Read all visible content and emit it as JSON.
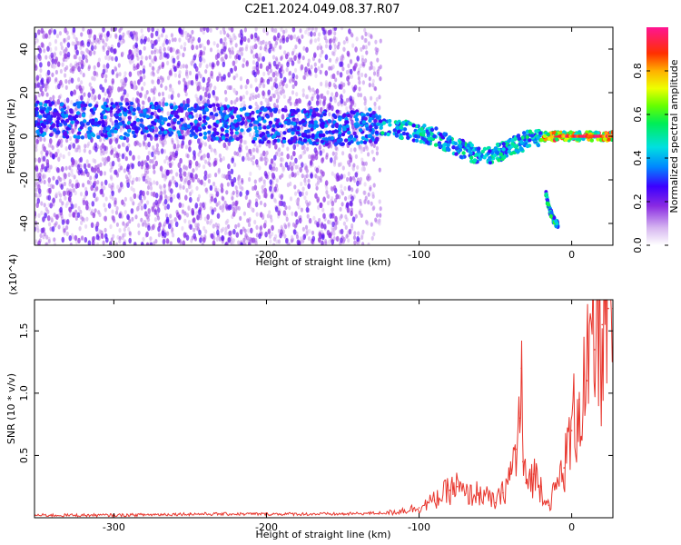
{
  "title": "C2E1.2024.049.08.37.R07",
  "chart_data": [
    {
      "type": "heatmap",
      "xlabel": "Height of straight line (km)",
      "ylabel": "Frequency (Hz)",
      "xlim": [
        -352,
        27
      ],
      "ylim": [
        -50,
        50
      ],
      "xticks": [
        -300,
        -200,
        -100,
        0
      ],
      "yticks": [
        -40,
        -20,
        0,
        20,
        40
      ],
      "colorbar": {
        "label": "Normalized spectral amplitude",
        "range": [
          0,
          1
        ],
        "ticks": [
          0.0,
          0.2,
          0.4,
          0.6,
          0.8
        ]
      },
      "ridge_x": [
        -352,
        -300,
        -250,
        -200,
        -150,
        -130,
        -110,
        -90,
        -75,
        -60,
        -50,
        -40,
        -30,
        -20,
        -10,
        0,
        10,
        27
      ],
      "ridge_y": [
        8,
        7,
        7,
        5,
        4,
        5,
        3,
        0,
        -5,
        -9,
        -8,
        -5,
        -2,
        0,
        0,
        0,
        0,
        0
      ],
      "secondary_x": [
        -17,
        -15,
        -12,
        -9
      ],
      "secondary_y": [
        -26,
        -33,
        -38,
        -41
      ]
    },
    {
      "type": "line",
      "xlabel": "Height of straight line (km)",
      "ylabel": "SNR (10 * v/v)",
      "y_scale_label": "(x10^4)",
      "xlim": [
        -352,
        27
      ],
      "ylim": [
        0,
        1.75
      ],
      "xticks": [
        -300,
        -200,
        -100,
        0
      ],
      "yticks": [
        0.5,
        1.0,
        1.5
      ],
      "series": [
        {
          "color": "#e8352c",
          "x": [
            -352,
            -300,
            -250,
            -200,
            -150,
            -120,
            -100,
            -90,
            -80,
            -75,
            -70,
            -60,
            -50,
            -45,
            -40,
            -36,
            -34,
            -33,
            -32,
            -30,
            -25,
            -20,
            -15,
            -10,
            -5,
            0,
            5,
            10,
            15,
            20,
            24,
            27
          ],
          "y": [
            0.02,
            0.02,
            0.03,
            0.03,
            0.03,
            0.04,
            0.08,
            0.14,
            0.22,
            0.25,
            0.18,
            0.2,
            0.12,
            0.2,
            0.35,
            0.55,
            0.8,
            1.2,
            0.45,
            0.28,
            0.35,
            0.25,
            0.1,
            0.25,
            0.4,
            0.7,
            0.95,
            1.1,
            1.35,
            1.55,
            1.68,
            1.68
          ]
        }
      ]
    }
  ]
}
